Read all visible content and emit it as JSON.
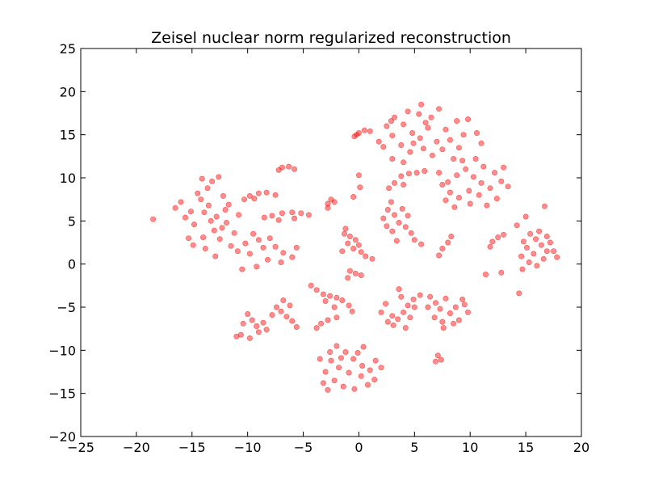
{
  "chart_data": {
    "type": "scatter",
    "title": "Zeisel nuclear norm regularized reconstruction",
    "xlabel": "",
    "ylabel": "",
    "xlim": [
      -25,
      20
    ],
    "ylim": [
      -20,
      25
    ],
    "xticks": [
      -25,
      -20,
      -15,
      -10,
      -5,
      0,
      5,
      10,
      15,
      20
    ],
    "yticks": [
      -20,
      -15,
      -10,
      -5,
      0,
      5,
      10,
      15,
      20,
      25
    ],
    "xtick_labels": [
      "−25",
      "−20",
      "−15",
      "−10",
      "−5",
      "0",
      "5",
      "10",
      "15",
      "20"
    ],
    "ytick_labels": [
      "−20",
      "−15",
      "−10",
      "−5",
      "0",
      "5",
      "10",
      "15",
      "20",
      "25"
    ],
    "grid": false,
    "marker_color": "#ff0000",
    "marker_alpha": 0.45,
    "points": [
      [
        -18.5,
        5.2
      ],
      [
        -13.5,
        6.8
      ],
      [
        -12.8,
        5.5
      ],
      [
        -14.2,
        7.5
      ],
      [
        -11.9,
        4.8
      ],
      [
        -13.0,
        3.9
      ],
      [
        -15.1,
        6.1
      ],
      [
        -12.2,
        7.9
      ],
      [
        -14.8,
        4.6
      ],
      [
        -13.6,
        8.8
      ],
      [
        -12.5,
        2.9
      ],
      [
        -11.2,
        3.6
      ],
      [
        -15.6,
        5.4
      ],
      [
        -14.0,
        3.1
      ],
      [
        -13.2,
        9.6
      ],
      [
        -12.0,
        6.3
      ],
      [
        -10.8,
        5.7
      ],
      [
        -16.0,
        7.2
      ],
      [
        -14.5,
        8.2
      ],
      [
        -11.5,
        2.1
      ],
      [
        -13.8,
        1.8
      ],
      [
        -12.9,
        0.9
      ],
      [
        -15.3,
        3.0
      ],
      [
        -10.9,
        1.5
      ],
      [
        -12.3,
        4.2
      ],
      [
        -13.9,
        6.0
      ],
      [
        -14.9,
        2.2
      ],
      [
        -11.7,
        6.9
      ],
      [
        -16.5,
        6.5
      ],
      [
        -12.6,
        10.1
      ],
      [
        -14.1,
        9.9
      ],
      [
        -13.3,
        5.0
      ],
      [
        -9.8,
        7.9
      ],
      [
        -9.0,
        8.2
      ],
      [
        -8.3,
        8.3
      ],
      [
        -7.5,
        8.0
      ],
      [
        -9.4,
        7.6
      ],
      [
        -10.3,
        7.5
      ],
      [
        -7.8,
        5.6
      ],
      [
        -6.9,
        5.9
      ],
      [
        -6.0,
        6.0
      ],
      [
        -5.2,
        5.9
      ],
      [
        -4.5,
        5.7
      ],
      [
        -8.5,
        5.4
      ],
      [
        -7.2,
        5.1
      ],
      [
        -5.8,
        5.3
      ],
      [
        -6.9,
        11.2
      ],
      [
        -6.3,
        11.3
      ],
      [
        -5.8,
        11.0
      ],
      [
        -7.2,
        10.9
      ],
      [
        -9.5,
        3.5
      ],
      [
        -9.0,
        2.8
      ],
      [
        -8.6,
        1.9
      ],
      [
        -9.8,
        1.2
      ],
      [
        -10.2,
        2.4
      ],
      [
        -8.0,
        3.0
      ],
      [
        -7.5,
        2.0
      ],
      [
        -6.8,
        1.3
      ],
      [
        -6.0,
        0.8
      ],
      [
        -5.6,
        1.9
      ],
      [
        -7.0,
        0.2
      ],
      [
        -8.2,
        0.5
      ],
      [
        -9.2,
        -0.3
      ],
      [
        -10.5,
        -0.6
      ],
      [
        -10.0,
        -5.8
      ],
      [
        -9.6,
        -6.5
      ],
      [
        -9.2,
        -7.2
      ],
      [
        -8.6,
        -6.8
      ],
      [
        -10.4,
        -6.9
      ],
      [
        -9.0,
        -7.9
      ],
      [
        -8.3,
        -7.6
      ],
      [
        -10.6,
        -8.2
      ],
      [
        -9.8,
        -8.6
      ],
      [
        -11.0,
        -8.4
      ],
      [
        -7.4,
        -5.0
      ],
      [
        -7.0,
        -5.5
      ],
      [
        -6.5,
        -6.1
      ],
      [
        -6.0,
        -6.6
      ],
      [
        -5.6,
        -7.3
      ],
      [
        -7.8,
        -5.9
      ],
      [
        -6.8,
        -4.2
      ],
      [
        -6.2,
        -4.8
      ],
      [
        -4.3,
        -2.5
      ],
      [
        -3.8,
        -3.0
      ],
      [
        -3.2,
        -3.5
      ],
      [
        -2.6,
        -3.7
      ],
      [
        -2.0,
        -3.9
      ],
      [
        -1.5,
        -4.2
      ],
      [
        -0.9,
        -4.8
      ],
      [
        -0.6,
        -5.5
      ],
      [
        -3.0,
        -4.3
      ],
      [
        -2.2,
        -5.0
      ],
      [
        -3.4,
        -6.9
      ],
      [
        -2.8,
        -6.5
      ],
      [
        -2.0,
        -6.2
      ],
      [
        -3.8,
        -7.4
      ],
      [
        -2.8,
        7.0
      ],
      [
        -2.5,
        7.5
      ],
      [
        -2.2,
        7.2
      ],
      [
        -2.8,
        6.5
      ],
      [
        -0.4,
        14.8
      ],
      [
        0.0,
        15.2
      ],
      [
        0.5,
        15.5
      ],
      [
        1.0,
        15.4
      ],
      [
        -0.2,
        15.0
      ],
      [
        0.0,
        10.3
      ],
      [
        0.1,
        8.9
      ],
      [
        -0.5,
        7.8
      ],
      [
        -1.3,
        3.5
      ],
      [
        -0.8,
        3.2
      ],
      [
        -0.3,
        2.8
      ],
      [
        -1.0,
        2.4
      ],
      [
        -0.5,
        1.8
      ],
      [
        0.2,
        1.4
      ],
      [
        0.6,
        0.9
      ],
      [
        1.2,
        0.6
      ],
      [
        -1.5,
        1.5
      ],
      [
        0.0,
        2.2
      ],
      [
        -1.2,
        4.1
      ],
      [
        -0.8,
        -0.8
      ],
      [
        -0.3,
        -1.1
      ],
      [
        0.2,
        -1.3
      ],
      [
        -1.0,
        -1.6
      ],
      [
        -2.0,
        -9.5
      ],
      [
        -1.2,
        -10.2
      ],
      [
        -0.5,
        -11.0
      ],
      [
        0.3,
        -11.8
      ],
      [
        -2.5,
        -11.2
      ],
      [
        -1.8,
        -12.0
      ],
      [
        -0.9,
        -12.6
      ],
      [
        0.2,
        -13.0
      ],
      [
        1.0,
        -12.3
      ],
      [
        -3.0,
        -12.5
      ],
      [
        -2.2,
        -13.5
      ],
      [
        -1.4,
        -14.2
      ],
      [
        -0.4,
        -14.5
      ],
      [
        0.8,
        -14.0
      ],
      [
        1.5,
        -11.2
      ],
      [
        -3.5,
        -11.0
      ],
      [
        -2.6,
        -10.2
      ],
      [
        -0.1,
        -10.3
      ],
      [
        1.4,
        -13.4
      ],
      [
        -3.2,
        -13.8
      ],
      [
        2.0,
        -12.0
      ],
      [
        -1.6,
        -10.9
      ],
      [
        0.4,
        -9.6
      ],
      [
        -2.8,
        -14.6
      ],
      [
        3.0,
        -6.0
      ],
      [
        3.5,
        -6.4
      ],
      [
        4.0,
        -5.6
      ],
      [
        4.4,
        -4.8
      ],
      [
        3.8,
        -3.8
      ],
      [
        4.9,
        -4.1
      ],
      [
        2.6,
        -6.7
      ],
      [
        3.1,
        -7.1
      ],
      [
        2.0,
        -5.6
      ],
      [
        4.2,
        -7.4
      ],
      [
        5.0,
        -5.0
      ],
      [
        3.6,
        -2.9
      ],
      [
        2.4,
        -4.6
      ],
      [
        4.6,
        -6.2
      ],
      [
        5.5,
        -3.6
      ],
      [
        6.4,
        -3.8
      ],
      [
        6.9,
        -4.5
      ],
      [
        7.3,
        -5.2
      ],
      [
        6.8,
        -6.2
      ],
      [
        7.5,
        -6.7
      ],
      [
        8.2,
        -5.7
      ],
      [
        8.7,
        -5.0
      ],
      [
        9.5,
        -4.7
      ],
      [
        9.8,
        -5.6
      ],
      [
        9.0,
        -6.5
      ],
      [
        7.8,
        -4.0
      ],
      [
        6.2,
        -5.0
      ],
      [
        9.3,
        -4.1
      ],
      [
        8.5,
        -6.9
      ],
      [
        7.6,
        -7.4
      ],
      [
        6.9,
        -11.3
      ],
      [
        7.4,
        -11.1
      ],
      [
        7.1,
        -10.6
      ],
      [
        3.2,
        5.7
      ],
      [
        2.6,
        6.3
      ],
      [
        3.6,
        4.8
      ],
      [
        2.2,
        5.3
      ],
      [
        4.2,
        4.3
      ],
      [
        3.0,
        3.8
      ],
      [
        3.9,
        6.4
      ],
      [
        4.7,
        3.6
      ],
      [
        2.9,
        7.2
      ],
      [
        5.0,
        2.8
      ],
      [
        5.6,
        2.3
      ],
      [
        3.4,
        2.7
      ],
      [
        2.5,
        4.4
      ],
      [
        4.4,
        5.6
      ],
      [
        3.8,
        10.2
      ],
      [
        4.5,
        10.5
      ],
      [
        5.2,
        10.6
      ],
      [
        5.9,
        10.8
      ],
      [
        3.2,
        9.4
      ],
      [
        2.7,
        8.8
      ],
      [
        4.0,
        9.2
      ],
      [
        7.5,
        1.8
      ],
      [
        8.0,
        2.5
      ],
      [
        8.3,
        3.2
      ],
      [
        7.2,
        1.0
      ],
      [
        3.2,
        17.0
      ],
      [
        4.0,
        16.2
      ],
      [
        4.8,
        15.2
      ],
      [
        5.5,
        14.6
      ],
      [
        6.2,
        15.8
      ],
      [
        7.0,
        14.2
      ],
      [
        3.0,
        14.9
      ],
      [
        3.8,
        13.8
      ],
      [
        4.6,
        13.0
      ],
      [
        5.8,
        13.4
      ],
      [
        6.6,
        12.6
      ],
      [
        7.5,
        13.3
      ],
      [
        8.2,
        14.4
      ],
      [
        7.8,
        15.6
      ],
      [
        6.5,
        17.0
      ],
      [
        5.4,
        17.4
      ],
      [
        4.4,
        17.7
      ],
      [
        2.5,
        16.0
      ],
      [
        2.2,
        13.6
      ],
      [
        3.0,
        12.2
      ],
      [
        4.0,
        11.8
      ],
      [
        8.5,
        12.2
      ],
      [
        9.0,
        13.5
      ],
      [
        9.4,
        15.0
      ],
      [
        8.8,
        16.6
      ],
      [
        7.2,
        18.0
      ],
      [
        5.6,
        18.5
      ],
      [
        6.0,
        16.4
      ],
      [
        4.9,
        14.0
      ],
      [
        9.8,
        16.8
      ],
      [
        10.6,
        15.2
      ],
      [
        11.0,
        14.0
      ],
      [
        1.8,
        14.2
      ],
      [
        2.9,
        16.6
      ],
      [
        8.0,
        9.5
      ],
      [
        8.8,
        10.3
      ],
      [
        9.6,
        11.0
      ],
      [
        10.3,
        10.1
      ],
      [
        11.0,
        9.4
      ],
      [
        11.8,
        8.8
      ],
      [
        10.8,
        8.0
      ],
      [
        9.9,
        8.5
      ],
      [
        9.0,
        7.7
      ],
      [
        8.2,
        8.3
      ],
      [
        7.5,
        9.2
      ],
      [
        11.2,
        11.3
      ],
      [
        12.2,
        10.6
      ],
      [
        12.8,
        9.6
      ],
      [
        10.5,
        12.2
      ],
      [
        9.3,
        12.0
      ],
      [
        7.2,
        10.6
      ],
      [
        7.8,
        7.4
      ],
      [
        10.0,
        7.0
      ],
      [
        12.4,
        7.6
      ],
      [
        11.5,
        6.8
      ],
      [
        8.6,
        6.6
      ],
      [
        13.0,
        11.2
      ],
      [
        13.4,
        9.0
      ],
      [
        15.4,
        3.5
      ],
      [
        15.9,
        2.9
      ],
      [
        16.4,
        2.2
      ],
      [
        16.9,
        1.5
      ],
      [
        15.1,
        1.9
      ],
      [
        15.7,
        1.2
      ],
      [
        16.6,
        0.6
      ],
      [
        17.5,
        1.5
      ],
      [
        17.2,
        2.5
      ],
      [
        16.2,
        3.8
      ],
      [
        14.8,
        2.6
      ],
      [
        15.3,
        0.2
      ],
      [
        16.0,
        -0.2
      ],
      [
        17.8,
        0.8
      ],
      [
        16.9,
        3.2
      ],
      [
        14.6,
        0.9
      ],
      [
        12.0,
        2.6
      ],
      [
        12.5,
        3.1
      ],
      [
        13.0,
        3.4
      ],
      [
        11.8,
        2.0
      ],
      [
        14.2,
        4.5
      ],
      [
        15.0,
        5.5
      ],
      [
        14.7,
        -0.6
      ],
      [
        16.7,
        6.7
      ],
      [
        11.4,
        -1.2
      ],
      [
        12.8,
        -1.0
      ],
      [
        14.4,
        -3.4
      ]
    ]
  }
}
